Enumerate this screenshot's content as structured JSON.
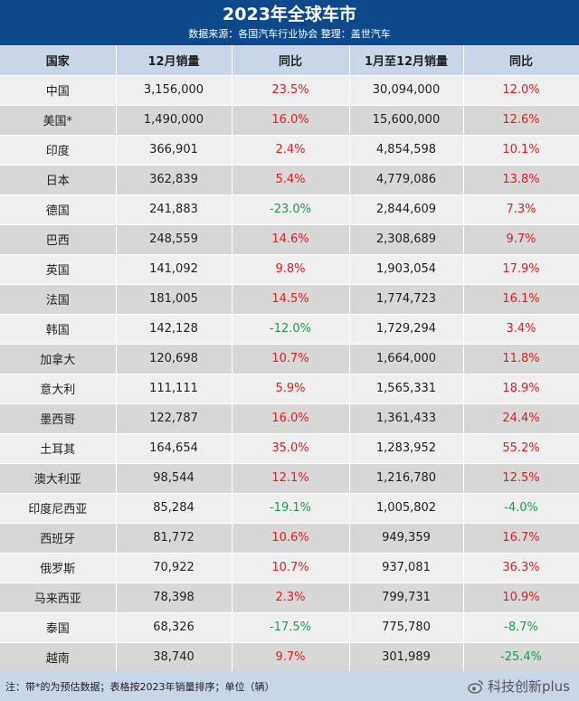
{
  "title": "2023年全球车市",
  "subtitle": "数据来源：各国汽车行业协会 整理：盖世汽车",
  "columns": [
    "国家",
    "12月销量",
    "同比",
    "1月至12月销量",
    "同比"
  ],
  "rows": [
    {
      "country": "中国",
      "dec_sales": "3,156,000",
      "dec_yoy": "23.5%",
      "dec_dir": "up",
      "ytd_sales": "30,094,000",
      "ytd_yoy": "12.0%",
      "ytd_dir": "up"
    },
    {
      "country": "美国*",
      "dec_sales": "1,490,000",
      "dec_yoy": "16.0%",
      "dec_dir": "up",
      "ytd_sales": "15,600,000",
      "ytd_yoy": "12.6%",
      "ytd_dir": "up"
    },
    {
      "country": "印度",
      "dec_sales": "366,901",
      "dec_yoy": "2.4%",
      "dec_dir": "up",
      "ytd_sales": "4,854,598",
      "ytd_yoy": "10.1%",
      "ytd_dir": "up"
    },
    {
      "country": "日本",
      "dec_sales": "362,839",
      "dec_yoy": "5.4%",
      "dec_dir": "up",
      "ytd_sales": "4,779,086",
      "ytd_yoy": "13.8%",
      "ytd_dir": "up"
    },
    {
      "country": "德国",
      "dec_sales": "241,883",
      "dec_yoy": "-23.0%",
      "dec_dir": "down",
      "ytd_sales": "2,844,609",
      "ytd_yoy": "7.3%",
      "ytd_dir": "up"
    },
    {
      "country": "巴西",
      "dec_sales": "248,559",
      "dec_yoy": "14.6%",
      "dec_dir": "up",
      "ytd_sales": "2,308,689",
      "ytd_yoy": "9.7%",
      "ytd_dir": "up"
    },
    {
      "country": "英国",
      "dec_sales": "141,092",
      "dec_yoy": "9.8%",
      "dec_dir": "up",
      "ytd_sales": "1,903,054",
      "ytd_yoy": "17.9%",
      "ytd_dir": "up"
    },
    {
      "country": "法国",
      "dec_sales": "181,005",
      "dec_yoy": "14.5%",
      "dec_dir": "up",
      "ytd_sales": "1,774,723",
      "ytd_yoy": "16.1%",
      "ytd_dir": "up"
    },
    {
      "country": "韩国",
      "dec_sales": "142,128",
      "dec_yoy": "-12.0%",
      "dec_dir": "down",
      "ytd_sales": "1,729,294",
      "ytd_yoy": "3.4%",
      "ytd_dir": "up"
    },
    {
      "country": "加拿大",
      "dec_sales": "120,698",
      "dec_yoy": "10.7%",
      "dec_dir": "up",
      "ytd_sales": "1,664,000",
      "ytd_yoy": "11.8%",
      "ytd_dir": "up"
    },
    {
      "country": "意大利",
      "dec_sales": "111,111",
      "dec_yoy": "5.9%",
      "dec_dir": "up",
      "ytd_sales": "1,565,331",
      "ytd_yoy": "18.9%",
      "ytd_dir": "up"
    },
    {
      "country": "墨西哥",
      "dec_sales": "122,787",
      "dec_yoy": "16.0%",
      "dec_dir": "up",
      "ytd_sales": "1,361,433",
      "ytd_yoy": "24.4%",
      "ytd_dir": "up"
    },
    {
      "country": "土耳其",
      "dec_sales": "164,654",
      "dec_yoy": "35.0%",
      "dec_dir": "up",
      "ytd_sales": "1,283,952",
      "ytd_yoy": "55.2%",
      "ytd_dir": "up"
    },
    {
      "country": "澳大利亚",
      "dec_sales": "98,544",
      "dec_yoy": "12.1%",
      "dec_dir": "up",
      "ytd_sales": "1,216,780",
      "ytd_yoy": "12.5%",
      "ytd_dir": "up"
    },
    {
      "country": "印度尼西亚",
      "dec_sales": "85,284",
      "dec_yoy": "-19.1%",
      "dec_dir": "down",
      "ytd_sales": "1,005,802",
      "ytd_yoy": "-4.0%",
      "ytd_dir": "down"
    },
    {
      "country": "西班牙",
      "dec_sales": "81,772",
      "dec_yoy": "10.6%",
      "dec_dir": "up",
      "ytd_sales": "949,359",
      "ytd_yoy": "16.7%",
      "ytd_dir": "up"
    },
    {
      "country": "俄罗斯",
      "dec_sales": "70,922",
      "dec_yoy": "10.7%",
      "dec_dir": "up",
      "ytd_sales": "937,081",
      "ytd_yoy": "36.3%",
      "ytd_dir": "up"
    },
    {
      "country": "马来西亚",
      "dec_sales": "78,398",
      "dec_yoy": "2.3%",
      "dec_dir": "up",
      "ytd_sales": "799,731",
      "ytd_yoy": "10.9%",
      "ytd_dir": "up"
    },
    {
      "country": "泰国",
      "dec_sales": "68,326",
      "dec_yoy": "-17.5%",
      "dec_dir": "down",
      "ytd_sales": "775,780",
      "ytd_yoy": "-8.7%",
      "ytd_dir": "down"
    },
    {
      "country": "越南",
      "dec_sales": "38,740",
      "dec_yoy": "9.7%",
      "dec_dir": "up",
      "ytd_sales": "301,989",
      "ytd_yoy": "-25.4%",
      "ytd_dir": "down"
    }
  ],
  "footnote": "注：带*的为预估数据；表格按2023年销量排序；单位（辆）",
  "watermark": "科技创新plus",
  "colors": {
    "header_bg": "#0e4a8b",
    "column_header_bg": "#c9d6e8",
    "row_light": "#efefef",
    "row_dark": "#d7d7d7",
    "increase": "#e02020",
    "decrease": "#19a14a"
  },
  "icons": {
    "watermark": "weibo-logo-icon"
  }
}
